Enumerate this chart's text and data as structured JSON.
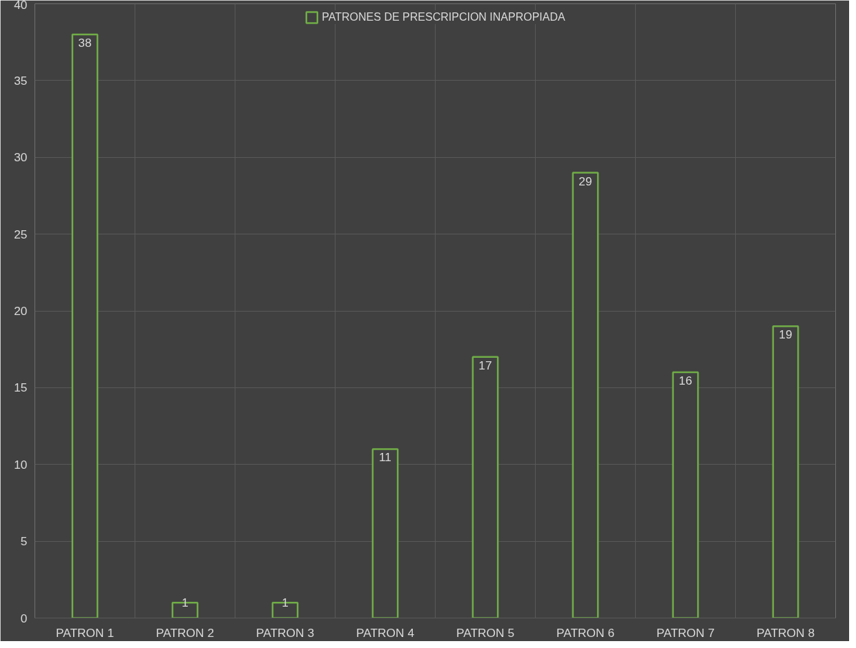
{
  "chart_data": {
    "type": "bar",
    "categories": [
      "PATRON 1",
      "PATRON 2",
      "PATRON 3",
      "PATRON 4",
      "PATRON 5",
      "PATRON 6",
      "PATRON 7",
      "PATRON 8"
    ],
    "series": [
      {
        "name": "PATRONES DE PRESCRIPCION INAPROPIADA",
        "color": "#70ad47",
        "values": [
          38,
          1,
          1,
          11,
          17,
          29,
          16,
          19
        ]
      }
    ],
    "ylim": [
      0,
      40
    ],
    "yticks": [
      0,
      5,
      10,
      15,
      20,
      25,
      30,
      35,
      40
    ],
    "grid": true,
    "legend": "top",
    "data_labels": true
  }
}
